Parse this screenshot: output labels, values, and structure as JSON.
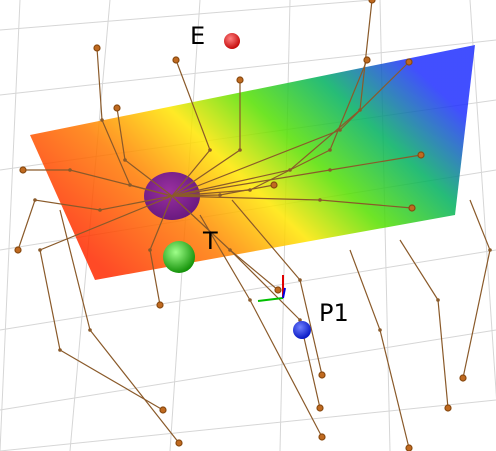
{
  "labels": {
    "e": "E",
    "t": "T",
    "p1": "P1"
  }
}
